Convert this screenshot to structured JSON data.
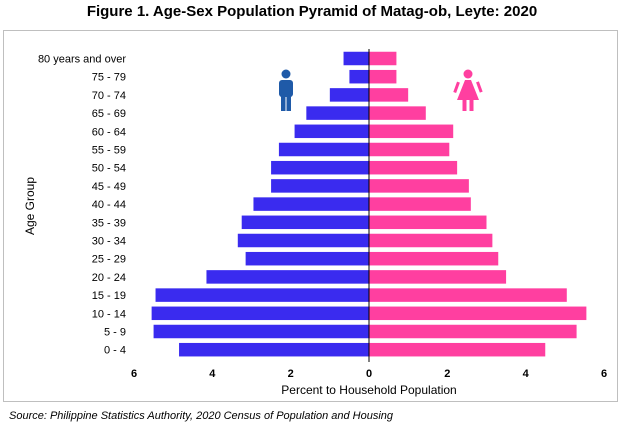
{
  "title": "Figure 1. Age-Sex Population Pyramid of Matag-ob, Leyte: 2020",
  "source": "Source: Philippine Statistics Authority, 2020 Census of Population and Housing",
  "colors": {
    "male": "#3a2bef",
    "female": "#ff3fa0",
    "male_icon": "#1f5aa8",
    "female_icon": "#ff3fa0"
  },
  "icons": {
    "male": "male-person-icon",
    "female": "female-person-icon"
  },
  "chart_data": {
    "type": "bar",
    "orientation": "horizontal-pyramid",
    "title": "Figure 1. Age-Sex Population Pyramid of Matag-ob, Leyte: 2020",
    "xlabel": "Percent to Household Population",
    "ylabel": "Age Group",
    "xlim": [
      -6,
      6
    ],
    "xticks": [
      6,
      4,
      2,
      0,
      2,
      4,
      6
    ],
    "categories": [
      "80 years and over",
      "75 - 79",
      "70 - 74",
      "65 - 69",
      "60 - 64",
      "55 - 59",
      "50 - 54",
      "45 - 49",
      "40 - 44",
      "35 - 39",
      "30 - 34",
      "25 - 29",
      "20 - 24",
      "15 - 19",
      "10 - 14",
      "5 - 9",
      "0 - 4"
    ],
    "series": [
      {
        "values": [
          0.65,
          0.5,
          1.0,
          1.6,
          1.9,
          2.3,
          2.5,
          2.5,
          2.95,
          3.25,
          3.35,
          3.15,
          4.15,
          5.45,
          5.55,
          5.5,
          4.85
        ]
      },
      {
        "values": [
          0.7,
          0.7,
          1.0,
          1.45,
          2.15,
          2.05,
          2.25,
          2.55,
          2.6,
          3.0,
          3.15,
          3.3,
          3.5,
          5.05,
          5.55,
          5.3,
          4.5
        ]
      }
    ],
    "grid": false,
    "legend": "none"
  }
}
